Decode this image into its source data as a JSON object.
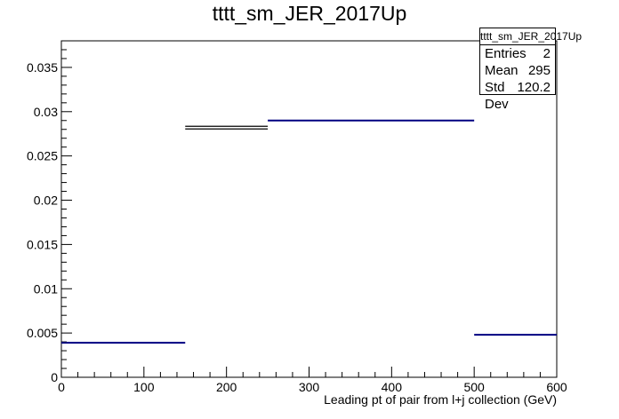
{
  "chart_data": {
    "type": "histogram",
    "title": "tttt_sm_JER_2017Up",
    "xlabel": "Leading pt of pair from l+j collection (GeV)",
    "ylabel": "",
    "xlim": [
      0,
      600
    ],
    "ylim": [
      0,
      0.038
    ],
    "x_ticks": [
      0,
      100,
      200,
      300,
      400,
      500,
      600
    ],
    "y_ticks": [
      0,
      0.005,
      0.01,
      0.015,
      0.02,
      0.025,
      0.03,
      0.035
    ],
    "x_tick_labels": [
      "0",
      "100",
      "200",
      "300",
      "400",
      "500",
      "600"
    ],
    "y_tick_labels": [
      "0",
      "0.005",
      "0.01",
      "0.015",
      "0.02",
      "0.025",
      "0.03",
      "0.035"
    ],
    "bins": [
      {
        "x0": 0,
        "x1": 150,
        "value": 0.0039,
        "color": "#000080"
      },
      {
        "x0": 150,
        "x1": 250,
        "value": 0.0282,
        "color": "#000000"
      },
      {
        "x0": 250,
        "x1": 500,
        "value": 0.029,
        "color": "#000080"
      },
      {
        "x0": 500,
        "x1": 600,
        "value": 0.0048,
        "color": "#000080"
      }
    ],
    "stats": {
      "name": "tttt_sm_JER_2017Up",
      "entries_label": "Entries",
      "entries": "2",
      "mean_label": "Mean",
      "mean": "295",
      "stddev_label": "Std Dev",
      "stddev": "120.2"
    }
  }
}
